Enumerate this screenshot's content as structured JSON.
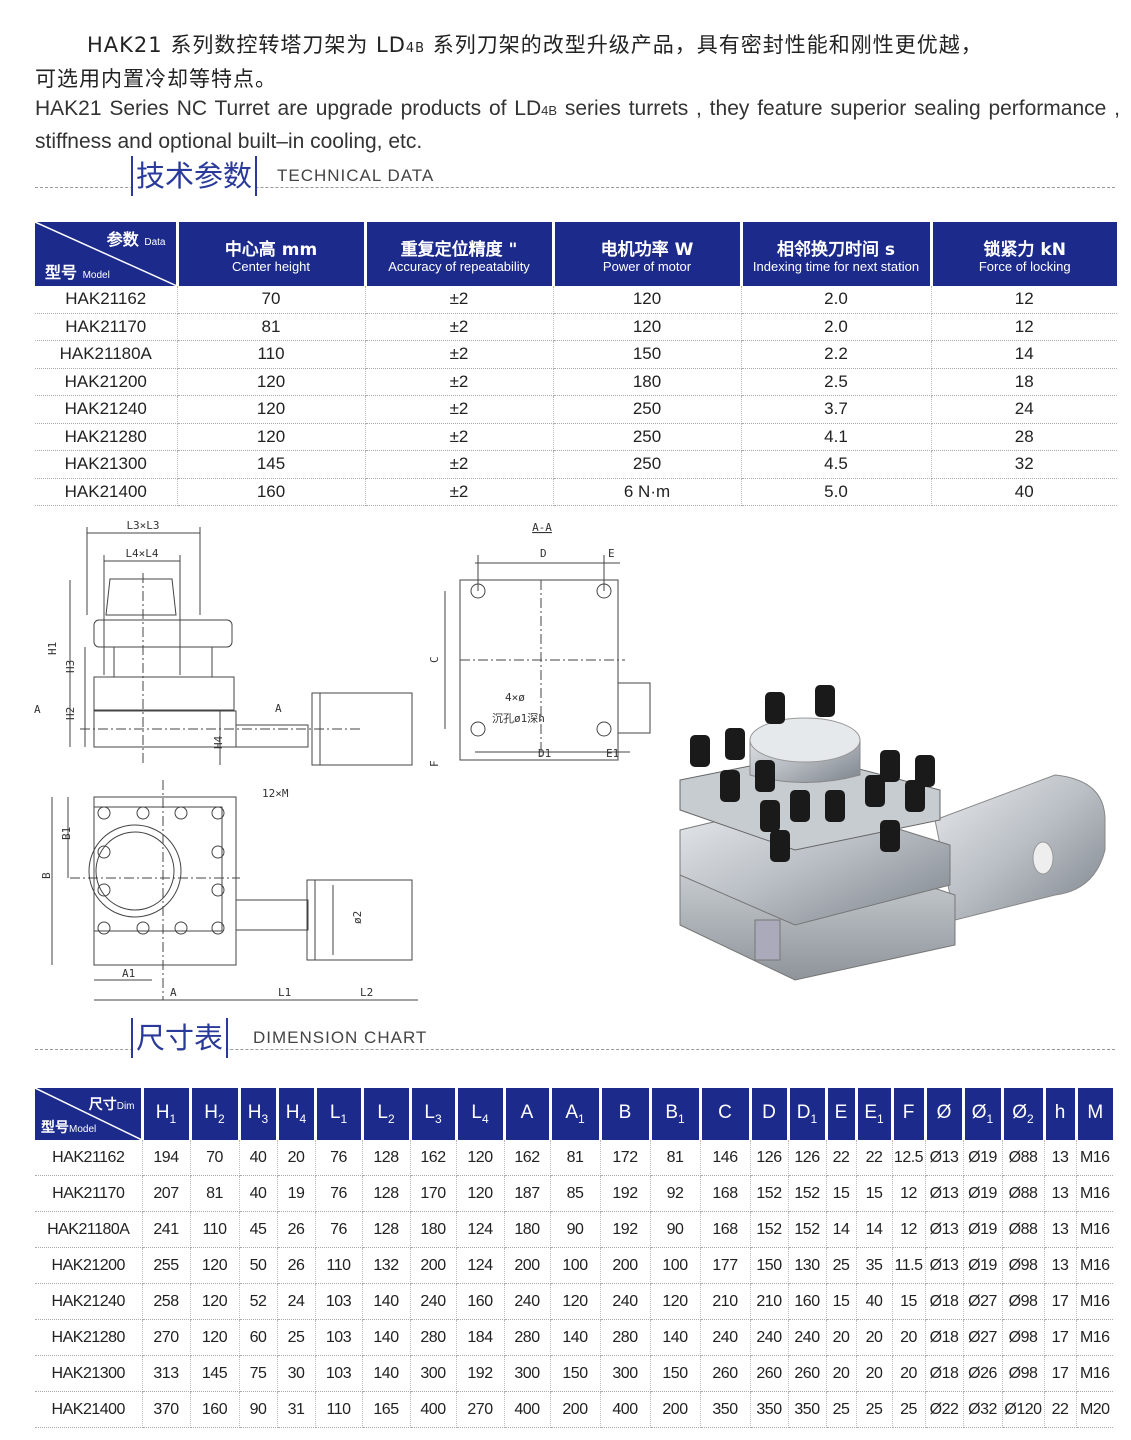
{
  "intro": {
    "zh_line1_a": "HAK21 系列数控转塔刀架为 LD",
    "zh_sub": "4B",
    "zh_line1_b": " 系列刀架的改型升级产品，具有密封性能和刚性更优越，",
    "zh_line2": "可选用内置冷却等特点。",
    "en_a": "HAK21 Series NC Turret are upgrade products of LD",
    "en_sub": "4B",
    "en_b": " series turrets , they feature superior sealing performance , stiffness and optional built–in cooling, etc."
  },
  "tech_section": {
    "title_zh": "技术参数",
    "title_en": "TECHNICAL  DATA"
  },
  "tech_table": {
    "corner": {
      "top_zh": "参数",
      "top_en": "Data",
      "bottom_zh": "型号",
      "bottom_en": "Model"
    },
    "headers": [
      {
        "zh": "中心高 mm",
        "en": "Center height"
      },
      {
        "zh": "重复定位精度 \"",
        "en": "Accuracy of repeatability"
      },
      {
        "zh": "电机功率 W",
        "en": "Power of motor"
      },
      {
        "zh": "相邻换刀时间 s",
        "en": "Indexing time for next station"
      },
      {
        "zh": "锁紧力 kN",
        "en": "Force of locking"
      }
    ],
    "rows": [
      [
        "HAK21162",
        "70",
        "±2",
        "120",
        "2.0",
        "12"
      ],
      [
        "HAK21170",
        "81",
        "±2",
        "120",
        "2.0",
        "12"
      ],
      [
        "HAK21180A",
        "110",
        "±2",
        "150",
        "2.2",
        "14"
      ],
      [
        "HAK21200",
        "120",
        "±2",
        "180",
        "2.5",
        "18"
      ],
      [
        "HAK21240",
        "120",
        "±2",
        "250",
        "3.7",
        "24"
      ],
      [
        "HAK21280",
        "120",
        "±2",
        "250",
        "4.1",
        "28"
      ],
      [
        "HAK21300",
        "145",
        "±2",
        "250",
        "4.5",
        "32"
      ],
      [
        "HAK21400",
        "160",
        "±2",
        "6 N·m",
        "5.0",
        "40"
      ]
    ]
  },
  "drawings": {
    "labels": {
      "l3": "L3×L3",
      "l4": "L4×L4",
      "h1": "H1",
      "h2": "H2",
      "h3": "H3",
      "h4": "H4",
      "a_arrow": "A",
      "a_shaft": "A",
      "section": "A-A",
      "d": "D",
      "e": "E",
      "c": "C",
      "f": "F",
      "d1": "D1",
      "e1": "E1",
      "holes": "4×ø",
      "counterbore": "沉孔ø1深h",
      "m": "12×M",
      "b": "B",
      "b1": "B1",
      "phi2": "ø2",
      "a1": "A1",
      "a": "A",
      "l1": "L1",
      "l2": "L2"
    }
  },
  "dim_section": {
    "title_zh": "尺寸表",
    "title_en": "DIMENSION  CHART"
  },
  "dim_table": {
    "corner": {
      "top_zh": "尺寸",
      "top_en": "Dim",
      "bottom_zh": "型号",
      "bottom_en": "Model"
    },
    "headers": [
      {
        "b": "H",
        "s": "1"
      },
      {
        "b": "H",
        "s": "2"
      },
      {
        "b": "H",
        "s": "3"
      },
      {
        "b": "H",
        "s": "4"
      },
      {
        "b": "L",
        "s": "1"
      },
      {
        "b": "L",
        "s": "2"
      },
      {
        "b": "L",
        "s": "3"
      },
      {
        "b": "L",
        "s": "4"
      },
      {
        "b": "A",
        "s": ""
      },
      {
        "b": "A",
        "s": "1"
      },
      {
        "b": "B",
        "s": ""
      },
      {
        "b": "B",
        "s": "1"
      },
      {
        "b": "C",
        "s": ""
      },
      {
        "b": "D",
        "s": ""
      },
      {
        "b": "D",
        "s": "1"
      },
      {
        "b": "E",
        "s": ""
      },
      {
        "b": "E",
        "s": "1"
      },
      {
        "b": "F",
        "s": ""
      },
      {
        "b": "Ø",
        "s": ""
      },
      {
        "b": "Ø",
        "s": "1"
      },
      {
        "b": "Ø",
        "s": "2"
      },
      {
        "b": "h",
        "s": ""
      },
      {
        "b": "M",
        "s": ""
      }
    ],
    "rows": [
      [
        "HAK21162",
        "194",
        "70",
        "40",
        "20",
        "76",
        "128",
        "162",
        "120",
        "162",
        "81",
        "172",
        "81",
        "146",
        "126",
        "126",
        "22",
        "22",
        "12.5",
        "Ø13",
        "Ø19",
        "Ø88",
        "13",
        "M16"
      ],
      [
        "HAK21170",
        "207",
        "81",
        "40",
        "19",
        "76",
        "128",
        "170",
        "120",
        "187",
        "85",
        "192",
        "92",
        "168",
        "152",
        "152",
        "15",
        "15",
        "12",
        "Ø13",
        "Ø19",
        "Ø88",
        "13",
        "M16"
      ],
      [
        "HAK21180A",
        "241",
        "110",
        "45",
        "26",
        "76",
        "128",
        "180",
        "124",
        "180",
        "90",
        "192",
        "90",
        "168",
        "152",
        "152",
        "14",
        "14",
        "12",
        "Ø13",
        "Ø19",
        "Ø88",
        "13",
        "M16"
      ],
      [
        "HAK21200",
        "255",
        "120",
        "50",
        "26",
        "110",
        "132",
        "200",
        "124",
        "200",
        "100",
        "200",
        "100",
        "177",
        "150",
        "130",
        "25",
        "35",
        "11.5",
        "Ø13",
        "Ø19",
        "Ø98",
        "13",
        "M16"
      ],
      [
        "HAK21240",
        "258",
        "120",
        "52",
        "24",
        "103",
        "140",
        "240",
        "160",
        "240",
        "120",
        "240",
        "120",
        "210",
        "210",
        "160",
        "15",
        "40",
        "15",
        "Ø18",
        "Ø27",
        "Ø98",
        "17",
        "M16"
      ],
      [
        "HAK21280",
        "270",
        "120",
        "60",
        "25",
        "103",
        "140",
        "280",
        "184",
        "280",
        "140",
        "280",
        "140",
        "240",
        "240",
        "240",
        "20",
        "20",
        "20",
        "Ø18",
        "Ø27",
        "Ø98",
        "17",
        "M16"
      ],
      [
        "HAK21300",
        "313",
        "145",
        "75",
        "30",
        "103",
        "140",
        "300",
        "192",
        "300",
        "150",
        "300",
        "150",
        "260",
        "260",
        "260",
        "20",
        "20",
        "20",
        "Ø18",
        "Ø26",
        "Ø98",
        "17",
        "M16"
      ],
      [
        "HAK21400",
        "370",
        "160",
        "90",
        "31",
        "110",
        "165",
        "400",
        "270",
        "400",
        "200",
        "400",
        "200",
        "350",
        "350",
        "350",
        "25",
        "25",
        "25",
        "Ø22",
        "Ø32",
        "Ø120",
        "22",
        "M20"
      ]
    ]
  },
  "colors": {
    "header_blue": "#1c2a8c",
    "title_blue": "#2a3a9a"
  }
}
